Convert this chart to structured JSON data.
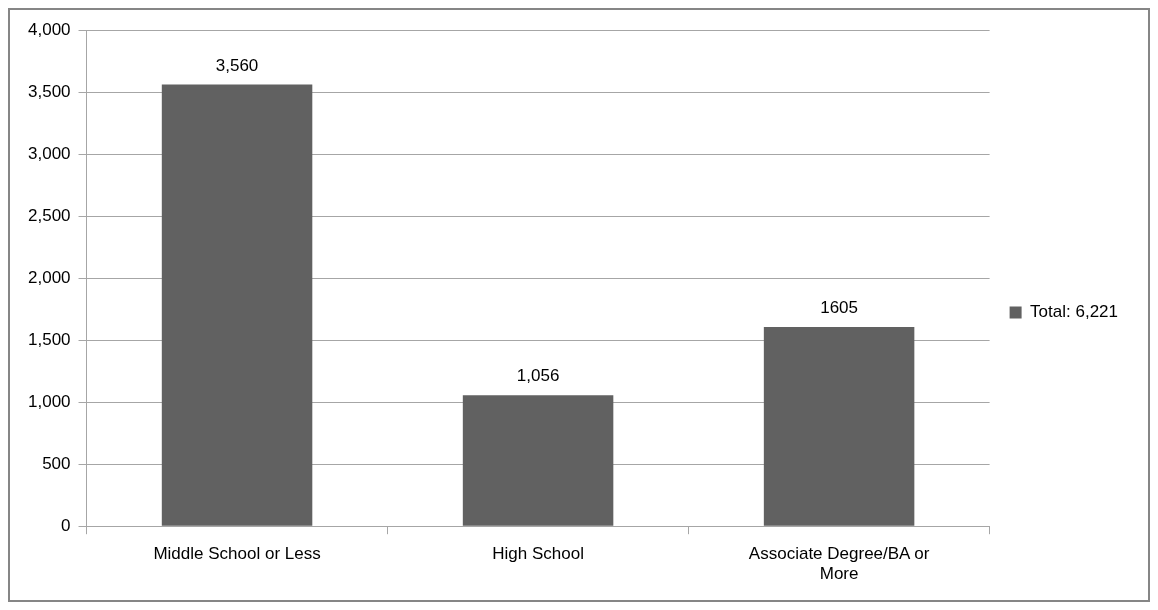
{
  "chart_data": {
    "type": "bar",
    "categories": [
      "Middle School or Less",
      "High School",
      "Associate Degree/BA or More"
    ],
    "series": [
      {
        "name": "Total: 6,221",
        "color": "#616161",
        "values": [
          3560,
          1056,
          1605
        ],
        "value_labels": [
          "3,560",
          "1,056",
          "1605"
        ]
      }
    ],
    "ylim": [
      0,
      4000
    ],
    "yticks": [
      {
        "value": 0,
        "label": "0"
      },
      {
        "value": 500,
        "label": "500"
      },
      {
        "value": 1000,
        "label": "1,000"
      },
      {
        "value": 1500,
        "label": "1,500"
      },
      {
        "value": 2000,
        "label": "2,000"
      },
      {
        "value": 2500,
        "label": "2,500"
      },
      {
        "value": 3000,
        "label": "3,000"
      },
      {
        "value": 3500,
        "label": "3,500"
      },
      {
        "value": 4000,
        "label": "4,000"
      }
    ],
    "grid": "y",
    "legend": "right"
  }
}
